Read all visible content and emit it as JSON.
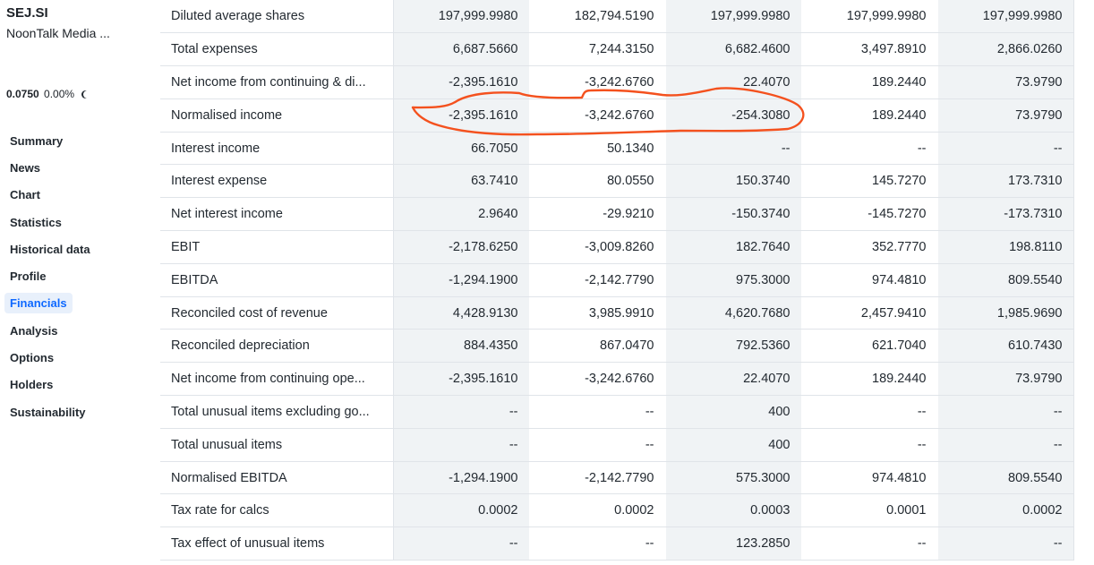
{
  "header": {
    "ticker": "SEJ.SI",
    "company": "NoonTalk Media ...",
    "price": "0.0750",
    "change_pct": "0.00%",
    "market_state_icon": "moon-icon"
  },
  "nav": [
    {
      "label": "Summary"
    },
    {
      "label": "News"
    },
    {
      "label": "Chart"
    },
    {
      "label": "Statistics"
    },
    {
      "label": "Historical data"
    },
    {
      "label": "Profile"
    },
    {
      "label": "Financials",
      "active": true
    },
    {
      "label": "Analysis"
    },
    {
      "label": "Options"
    },
    {
      "label": "Holders"
    },
    {
      "label": "Sustainability"
    }
  ],
  "table": {
    "rows": [
      {
        "label": "Diluted average shares",
        "values": [
          "197,999.9980",
          "182,794.5190",
          "197,999.9980",
          "197,999.9980",
          "197,999.9980"
        ]
      },
      {
        "label": "Total expenses",
        "values": [
          "6,687.5660",
          "7,244.3150",
          "6,682.4600",
          "3,497.8910",
          "2,866.0260"
        ]
      },
      {
        "label": "Net income from continuing & di...",
        "values": [
          "-2,395.1610",
          "-3,242.6760",
          "22.4070",
          "189.2440",
          "73.9790"
        ]
      },
      {
        "label": "Normalised income",
        "values": [
          "-2,395.1610",
          "-3,242.6760",
          "-254.3080",
          "189.2440",
          "73.9790"
        ]
      },
      {
        "label": "Interest income",
        "values": [
          "66.7050",
          "50.1340",
          "--",
          "--",
          "--"
        ]
      },
      {
        "label": "Interest expense",
        "values": [
          "63.7410",
          "80.0550",
          "150.3740",
          "145.7270",
          "173.7310"
        ]
      },
      {
        "label": "Net interest income",
        "values": [
          "2.9640",
          "-29.9210",
          "-150.3740",
          "-145.7270",
          "-173.7310"
        ]
      },
      {
        "label": "EBIT",
        "values": [
          "-2,178.6250",
          "-3,009.8260",
          "182.7640",
          "352.7770",
          "198.8110"
        ]
      },
      {
        "label": "EBITDA",
        "values": [
          "-1,294.1900",
          "-2,142.7790",
          "975.3000",
          "974.4810",
          "809.5540"
        ]
      },
      {
        "label": "Reconciled cost of revenue",
        "values": [
          "4,428.9130",
          "3,985.9910",
          "4,620.7680",
          "2,457.9410",
          "1,985.9690"
        ]
      },
      {
        "label": "Reconciled depreciation",
        "values": [
          "884.4350",
          "867.0470",
          "792.5360",
          "621.7040",
          "610.7430"
        ]
      },
      {
        "label": "Net income from continuing ope...",
        "values": [
          "-2,395.1610",
          "-3,242.6760",
          "22.4070",
          "189.2440",
          "73.9790"
        ]
      },
      {
        "label": "Total unusual items excluding go...",
        "values": [
          "--",
          "--",
          "400",
          "--",
          "--"
        ]
      },
      {
        "label": "Total unusual items",
        "values": [
          "--",
          "--",
          "400",
          "--",
          "--"
        ]
      },
      {
        "label": "Normalised EBITDA",
        "values": [
          "-1,294.1900",
          "-2,142.7790",
          "575.3000",
          "974.4810",
          "809.5540"
        ]
      },
      {
        "label": "Tax rate for calcs",
        "values": [
          "0.0002",
          "0.0002",
          "0.0003",
          "0.0001",
          "0.0002"
        ]
      },
      {
        "label": "Tax effect of unusual items",
        "values": [
          "--",
          "--",
          "123.2850",
          "--",
          "--"
        ]
      }
    ]
  },
  "annotation": {
    "color": "#f4511e"
  }
}
